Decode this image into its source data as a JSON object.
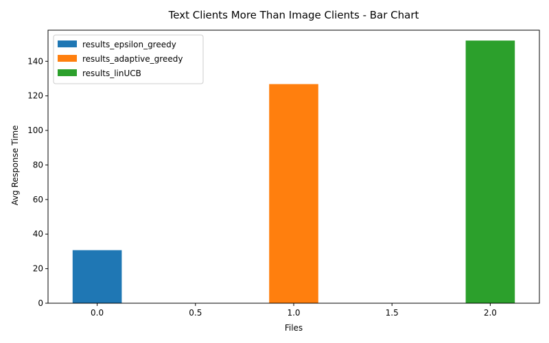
{
  "chart_data": {
    "type": "bar",
    "title": "Text Clients More Than Image Clients - Bar Chart",
    "xlabel": "Files",
    "ylabel": "Avg Response Time",
    "xlim": [
      -0.25,
      2.25
    ],
    "ylim": [
      0,
      158
    ],
    "xticks": [
      "0.0",
      "0.5",
      "1.0",
      "1.5",
      "2.0"
    ],
    "yticks": [
      "0",
      "20",
      "40",
      "60",
      "80",
      "100",
      "120",
      "140"
    ],
    "bar_width": 0.25,
    "grid": false,
    "legend_position": "top-left",
    "series": [
      {
        "name": "results_epsilon_greedy",
        "x": 0,
        "value": 30.7,
        "color": "#1f77b4"
      },
      {
        "name": "results_adaptive_greedy",
        "x": 1,
        "value": 126.8,
        "color": "#ff7f0e"
      },
      {
        "name": "results_linUCB",
        "x": 2,
        "value": 152,
        "color": "#2ca02c"
      }
    ]
  }
}
